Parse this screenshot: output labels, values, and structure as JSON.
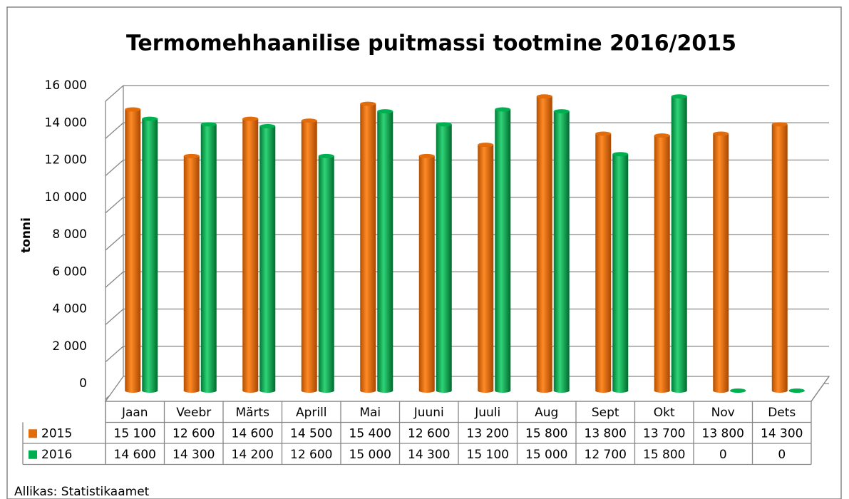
{
  "chart_data": {
    "type": "bar",
    "title": "Termomehhaanilise puitmassi tootmine 2016/2015",
    "y_label": "tonni",
    "source": "Allikas: Statistikaamet",
    "categories": [
      "Jaan",
      "Veebr",
      "Märts",
      "Aprill",
      "Mai",
      "Juuni",
      "Juuli",
      "Aug",
      "Sept",
      "Okt",
      "Nov",
      "Dets"
    ],
    "series": [
      {
        "name": "2015",
        "color": "#e36c0a",
        "values": [
          15100,
          12600,
          14600,
          14500,
          15400,
          12600,
          13200,
          15800,
          13800,
          13700,
          13800,
          14300
        ],
        "value_labels": [
          "15 100",
          "12 600",
          "14 600",
          "14 500",
          "15 400",
          "12 600",
          "13 200",
          "15 800",
          "13 800",
          "13 700",
          "13 800",
          "14 300"
        ]
      },
      {
        "name": "2016",
        "color": "#00b050",
        "values": [
          14600,
          14300,
          14200,
          12600,
          15000,
          14300,
          15100,
          15000,
          12700,
          15800,
          0,
          0
        ],
        "value_labels": [
          "14 600",
          "14 300",
          "14 200",
          "12 600",
          "15 000",
          "14 300",
          "15 100",
          "15 000",
          "12 700",
          "15 800",
          "0",
          "0"
        ]
      }
    ],
    "ylim": [
      0,
      16000
    ],
    "yticks": [
      0,
      {
        "value": 2000,
        "label": "2 000"
      },
      {
        "value": 4000,
        "label": "4 000"
      },
      {
        "value": 6000,
        "label": "6 000"
      },
      {
        "value": 8000,
        "label": "8 000"
      },
      {
        "value": 10000,
        "label": "10 000"
      },
      {
        "value": 12000,
        "label": "12 000"
      },
      {
        "value": 14000,
        "label": "14 000"
      },
      {
        "value": 16000,
        "label": "16 000"
      }
    ],
    "grid": true,
    "legend": "table"
  }
}
